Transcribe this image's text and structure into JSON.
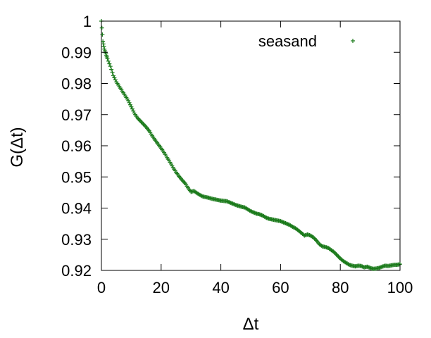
{
  "chart_data": {
    "type": "scatter",
    "title": "",
    "xlabel": "Δt",
    "ylabel": "G(Δt)",
    "xlim": [
      0,
      100
    ],
    "ylim": [
      0.92,
      1.0
    ],
    "x_ticks": [
      0,
      20,
      40,
      60,
      80,
      100
    ],
    "y_ticks": [
      0.92,
      0.93,
      0.94,
      0.95,
      0.96,
      0.97,
      0.98,
      0.99,
      1
    ],
    "x_tick_labels": [
      "0",
      "20",
      "40",
      "60",
      "80",
      "100"
    ],
    "y_tick_labels": [
      "0.92",
      "0.93",
      "0.94",
      "0.95",
      "0.96",
      "0.97",
      "0.98",
      "0.99",
      "1"
    ],
    "grid": false,
    "legend_position": "top-right",
    "marker": "plus",
    "color": "#1a7a1a",
    "series": [
      {
        "name": "seasand",
        "x": [
          0,
          0.5,
          1,
          1.5,
          2,
          3,
          4,
          5,
          6,
          7,
          8,
          9,
          10,
          11,
          12,
          13,
          14,
          15,
          16,
          17,
          18,
          19,
          20,
          21,
          22,
          23,
          24,
          25,
          26,
          27,
          28,
          29,
          30,
          31,
          32,
          33,
          34,
          35,
          36,
          37,
          38,
          39,
          40,
          41,
          42,
          43,
          44,
          45,
          46,
          47,
          48,
          49,
          50,
          51,
          52,
          53,
          54,
          55,
          56,
          57,
          58,
          59,
          60,
          61,
          62,
          63,
          64,
          65,
          66,
          67,
          68,
          69,
          70,
          71,
          72,
          73,
          74,
          75,
          76,
          77,
          78,
          79,
          80,
          81,
          82,
          83,
          84,
          85,
          86,
          87,
          88,
          89,
          90,
          91,
          92,
          93,
          94,
          95,
          96,
          97,
          98,
          99,
          100
        ],
        "y": [
          1.0,
          0.9935,
          0.991,
          0.9895,
          0.988,
          0.9855,
          0.9825,
          0.9805,
          0.979,
          0.9775,
          0.976,
          0.9745,
          0.9725,
          0.9705,
          0.969,
          0.968,
          0.967,
          0.966,
          0.9648,
          0.9632,
          0.9618,
          0.9605,
          0.9592,
          0.9578,
          0.9562,
          0.9547,
          0.953,
          0.9515,
          0.9502,
          0.949,
          0.948,
          0.9465,
          0.9452,
          0.9455,
          0.9448,
          0.9442,
          0.9437,
          0.9435,
          0.9433,
          0.943,
          0.9428,
          0.9426,
          0.9424,
          0.9423,
          0.9422,
          0.9418,
          0.9414,
          0.941,
          0.9407,
          0.9404,
          0.9402,
          0.9396,
          0.939,
          0.9386,
          0.9382,
          0.938,
          0.9376,
          0.937,
          0.9366,
          0.9364,
          0.9362,
          0.936,
          0.9358,
          0.9354,
          0.935,
          0.9346,
          0.934,
          0.9335,
          0.9328,
          0.932,
          0.9312,
          0.9315,
          0.9312,
          0.9306,
          0.9296,
          0.9284,
          0.9277,
          0.9275,
          0.9272,
          0.9265,
          0.9258,
          0.9248,
          0.9238,
          0.923,
          0.9224,
          0.9218,
          0.9215,
          0.9213,
          0.9215,
          0.9214,
          0.921,
          0.9212,
          0.9208,
          0.9205,
          0.9206,
          0.9208,
          0.9212,
          0.9215,
          0.9214,
          0.9216,
          0.9218,
          0.9218,
          0.922
        ]
      }
    ]
  }
}
